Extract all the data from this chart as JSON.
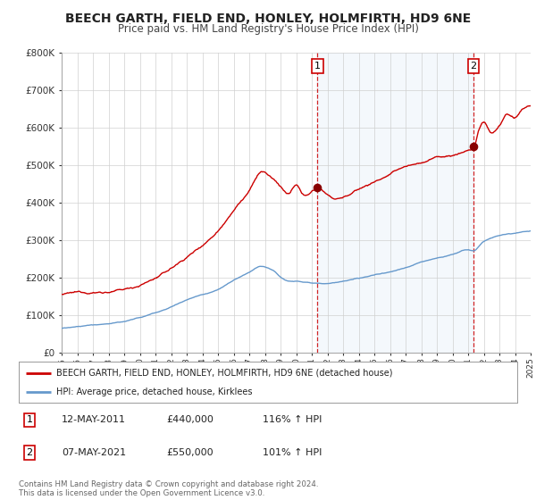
{
  "title": "BEECH GARTH, FIELD END, HONLEY, HOLMFIRTH, HD9 6NE",
  "subtitle": "Price paid vs. HM Land Registry's House Price Index (HPI)",
  "title_fontsize": 10,
  "subtitle_fontsize": 8.5,
  "red_color": "#cc0000",
  "blue_color": "#6699cc",
  "plot_bg": "#ffffff",
  "ylim": [
    0,
    800000
  ],
  "yticks": [
    0,
    100000,
    200000,
    300000,
    400000,
    500000,
    600000,
    700000,
    800000
  ],
  "ytick_labels": [
    "£0",
    "£100K",
    "£200K",
    "£300K",
    "£400K",
    "£500K",
    "£600K",
    "£700K",
    "£800K"
  ],
  "xmin": 1995,
  "xmax": 2025,
  "marker1_x": 2011.36,
  "marker1_y": 440000,
  "marker1_label": "1",
  "marker1_date": "12-MAY-2011",
  "marker1_price": "£440,000",
  "marker1_hpi": "116% ↑ HPI",
  "marker2_x": 2021.35,
  "marker2_y": 550000,
  "marker2_label": "2",
  "marker2_date": "07-MAY-2021",
  "marker2_price": "£550,000",
  "marker2_hpi": "101% ↑ HPI",
  "legend_label_red": "BEECH GARTH, FIELD END, HONLEY, HOLMFIRTH, HD9 6NE (detached house)",
  "legend_label_blue": "HPI: Average price, detached house, Kirklees",
  "footer1": "Contains HM Land Registry data © Crown copyright and database right 2024.",
  "footer2": "This data is licensed under the Open Government Licence v3.0.",
  "shaded_alpha": 0.12,
  "shaded_color": "#aaccee"
}
